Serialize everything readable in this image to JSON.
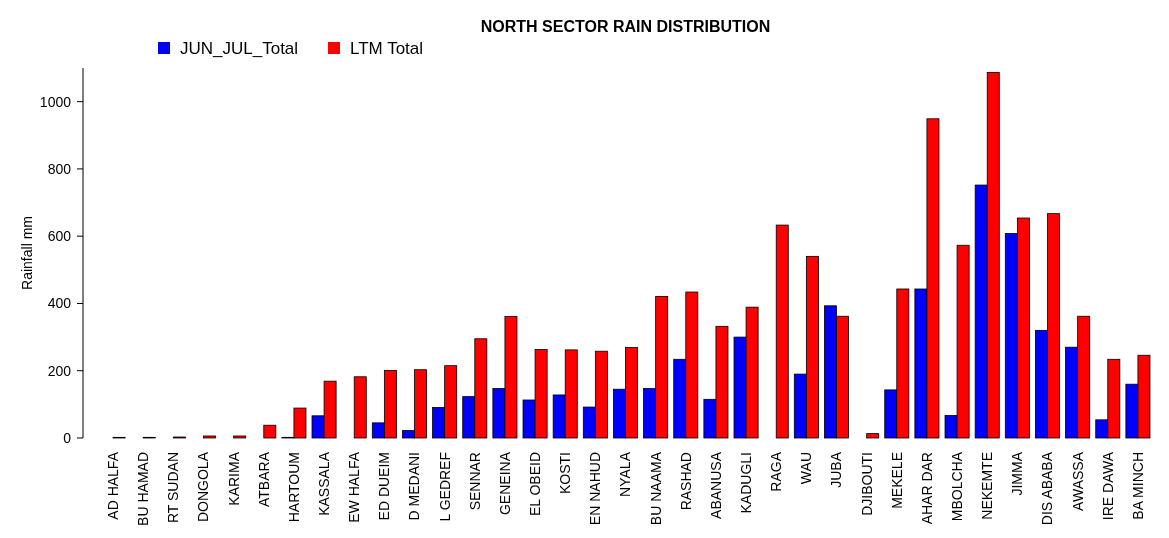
{
  "chart_data": {
    "type": "bar",
    "title": "NORTH SECTOR RAIN DISTRIBUTION",
    "ylabel": "Rainfall mm",
    "categories": [
      "AD HALFA",
      "BU HAMAD",
      "RT SUDAN",
      "DONGOLA",
      "KARIMA",
      "ATBARA",
      "HARTOUM",
      "KASSALA",
      "EW HALFA",
      "ED DUEIM",
      "D MEDANI",
      "L GEDREF",
      "SENNAR",
      "GENEINA",
      "EL OBEID",
      "KOSTI",
      "EN NAHUD",
      "NYALA",
      "BU NAAMA",
      "RASHAD",
      "ABANUSA",
      "KADUGLI",
      "RAGA",
      "WAU",
      "JUBA",
      "DJIBOUTI",
      "MEKELE",
      "AHAR DAR",
      "MBOLCHA",
      "NEKEMTE",
      "JIMMA",
      "DIS ABABA",
      "AWASSA",
      "IRE DAWA",
      "BA MINCH"
    ],
    "series": [
      {
        "name": "JUN_JUL_Total",
        "color": "#0000ff",
        "values": [
          0,
          0,
          0,
          0,
          0,
          0,
          2,
          66,
          0,
          45,
          22,
          91,
          123,
          147,
          113,
          128,
          92,
          145,
          147,
          234,
          115,
          300,
          0,
          190,
          393,
          0,
          143,
          443,
          67,
          752,
          608,
          320,
          270,
          54,
          160
        ]
      },
      {
        "name": "LTM Total",
        "color": "#ff0000",
        "values": [
          2,
          2,
          3,
          6,
          6,
          38,
          89,
          169,
          182,
          201,
          203,
          215,
          295,
          361,
          263,
          262,
          258,
          269,
          421,
          434,
          332,
          389,
          633,
          540,
          362,
          13,
          443,
          949,
          573,
          1087,
          654,
          667,
          362,
          234,
          246
        ]
      }
    ],
    "ylim": [
      0,
      1100
    ],
    "yticks": [
      0,
      200,
      400,
      600,
      800,
      1000
    ],
    "legend": "top left"
  }
}
